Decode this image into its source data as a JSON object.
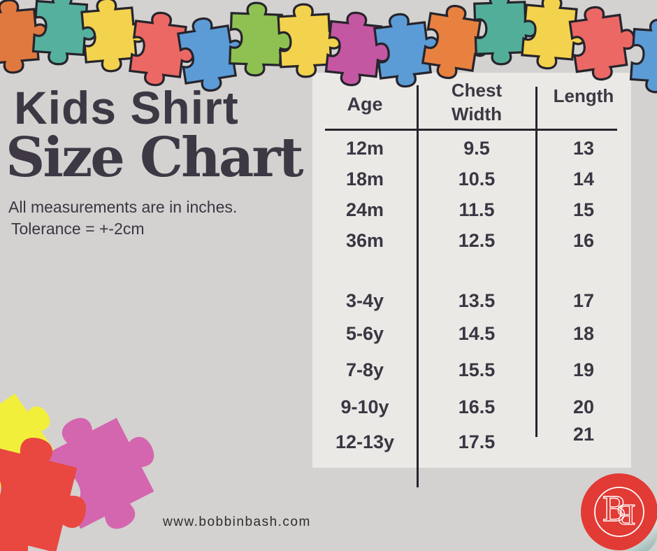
{
  "header": {
    "title_line1": "Kids Shirt",
    "title_line2": "Size Chart",
    "subtitle_line1": "All measurements are in inches.",
    "subtitle_line2": "Tolerance = +-2cm"
  },
  "table": {
    "columns": [
      "Age",
      "Chest Width",
      "Length"
    ],
    "rows": [
      {
        "age": "12m",
        "chest": "9.5",
        "length": "13"
      },
      {
        "age": "18m",
        "chest": "10.5",
        "length": "14"
      },
      {
        "age": "24m",
        "chest": "11.5",
        "length": "15"
      },
      {
        "age": "36m",
        "chest": "12.5",
        "length": "16"
      },
      {
        "age": "3-4y",
        "chest": "13.5",
        "length": "17"
      },
      {
        "age": "5-6y",
        "chest": "14.5",
        "length": "18"
      },
      {
        "age": "7-8y",
        "chest": "15.5",
        "length": "19"
      },
      {
        "age": "9-10y",
        "chest": "16.5",
        "length": "20"
      },
      {
        "age": "12-13y",
        "chest": "17.5",
        "length": "21"
      }
    ]
  },
  "footer": {
    "website": "www.bobbinbash.com"
  },
  "logo": {
    "monogram_letter": "B"
  },
  "colors": {
    "background": "#d3d2d0",
    "panel": "#ebe9e6",
    "heading": "#3e3844",
    "body_text": "#3b3642",
    "line": "#26242c",
    "website_text": "#2f2e2e",
    "logo_red": "#e23a34",
    "curl_teal": "#8fafab"
  },
  "decor": {
    "top_border_colors": [
      "#e0793f",
      "#55b09e",
      "#f3d24d",
      "#ec6865",
      "#5b9cd6",
      "#8ec152",
      "#f3d24d",
      "#c457a2",
      "#5b9cd6",
      "#e8813f",
      "#53ae99",
      "#f3d24d",
      "#ec6865",
      "#5b9cd6"
    ],
    "corner_piece_colors": [
      "#f2ef3b",
      "#d466af",
      "#e8483f"
    ]
  }
}
